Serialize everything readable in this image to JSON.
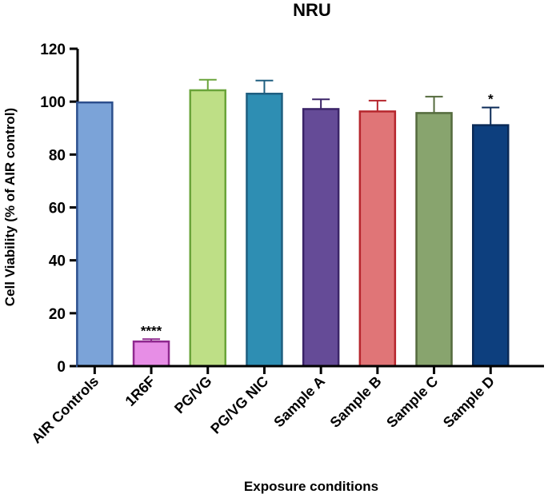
{
  "chart_data": {
    "type": "bar",
    "title": "NRU",
    "xlabel": "Exposure conditions",
    "ylabel": "Cell Viability (% of AIR control)",
    "ylim": [
      0,
      120
    ],
    "yticks": [
      0,
      20,
      40,
      60,
      80,
      100,
      120
    ],
    "grid": false,
    "legend": "none",
    "categories": [
      "AIR Controls",
      "1R6F",
      "PG/VG",
      "PG/VG NIC",
      "Sample A",
      "Sample B",
      "Sample C",
      "Sample D"
    ],
    "values": [
      99.7,
      9.3,
      104.3,
      103.0,
      97.2,
      96.3,
      95.7,
      91.1
    ],
    "errors": [
      0,
      0.9,
      4.0,
      5.0,
      3.7,
      4.1,
      6.2,
      6.7
    ],
    "annotations": [
      "",
      "****",
      "",
      "",
      "",
      "",
      "",
      "*"
    ],
    "fill_colors": [
      "#7ba3d8",
      "#e78ee6",
      "#bedf86",
      "#2e8eb3",
      "#654b97",
      "#e07577",
      "#88a46e",
      "#0d3f7e"
    ],
    "edge_colors": [
      "#2c4f8d",
      "#8f298f",
      "#6aa43a",
      "#1f5f80",
      "#3b2468",
      "#b6262d",
      "#556b3e",
      "#0a2a57"
    ]
  }
}
